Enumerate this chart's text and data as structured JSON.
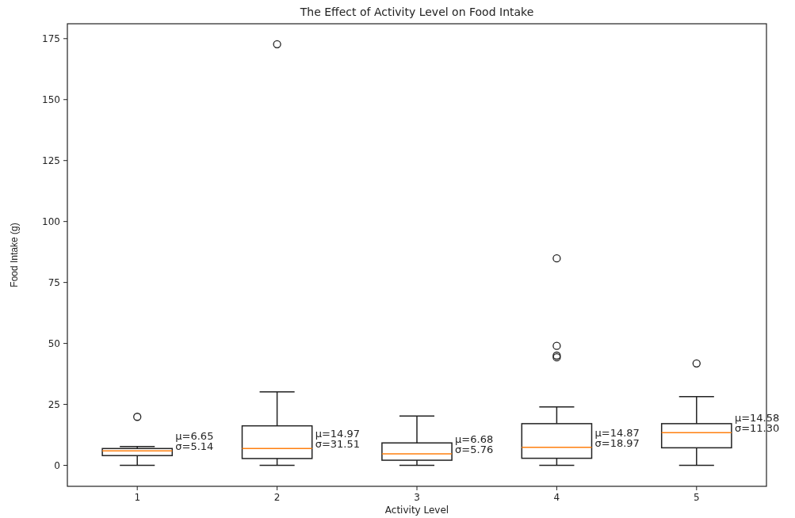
{
  "chart_data": {
    "type": "box",
    "title": "The Effect of Activity Level on Food Intake",
    "xlabel": "Activity Level",
    "ylabel": "Food Intake (g)",
    "categories": [
      "1",
      "2",
      "3",
      "4",
      "5"
    ],
    "boxes": [
      {
        "low": 0,
        "q1": 4.0,
        "median": 5.9,
        "q3": 6.9,
        "high": 7.7,
        "outliers": [
          19.9
        ]
      },
      {
        "low": 0,
        "q1": 2.8,
        "median": 6.9,
        "q3": 16.2,
        "high": 30.1,
        "outliers": [
          172.7
        ]
      },
      {
        "low": 0,
        "q1": 2.1,
        "median": 4.7,
        "q3": 9.2,
        "high": 20.2
      },
      {
        "low": 0,
        "q1": 2.9,
        "median": 7.4,
        "q3": 17.1,
        "high": 24.0,
        "outliers": [
          84.9,
          49.0,
          45.0,
          44.3
        ]
      },
      {
        "low": 0,
        "q1": 7.2,
        "median": 13.4,
        "q3": 17.1,
        "high": 28.2,
        "outliers": [
          41.8
        ]
      }
    ],
    "color": "#222222",
    "ylim": [
      -8.6,
      181.1
    ],
    "yticks": [
      0,
      25,
      50,
      75,
      100,
      125,
      150,
      175
    ],
    "annotations": [
      "μ=6.65\nσ=5.14",
      "μ=14.97\nσ=31.51",
      "μ=6.68\nσ=5.76",
      "μ=14.87\nσ=18.97",
      "μ=14.58\nσ=11.30"
    ]
  }
}
